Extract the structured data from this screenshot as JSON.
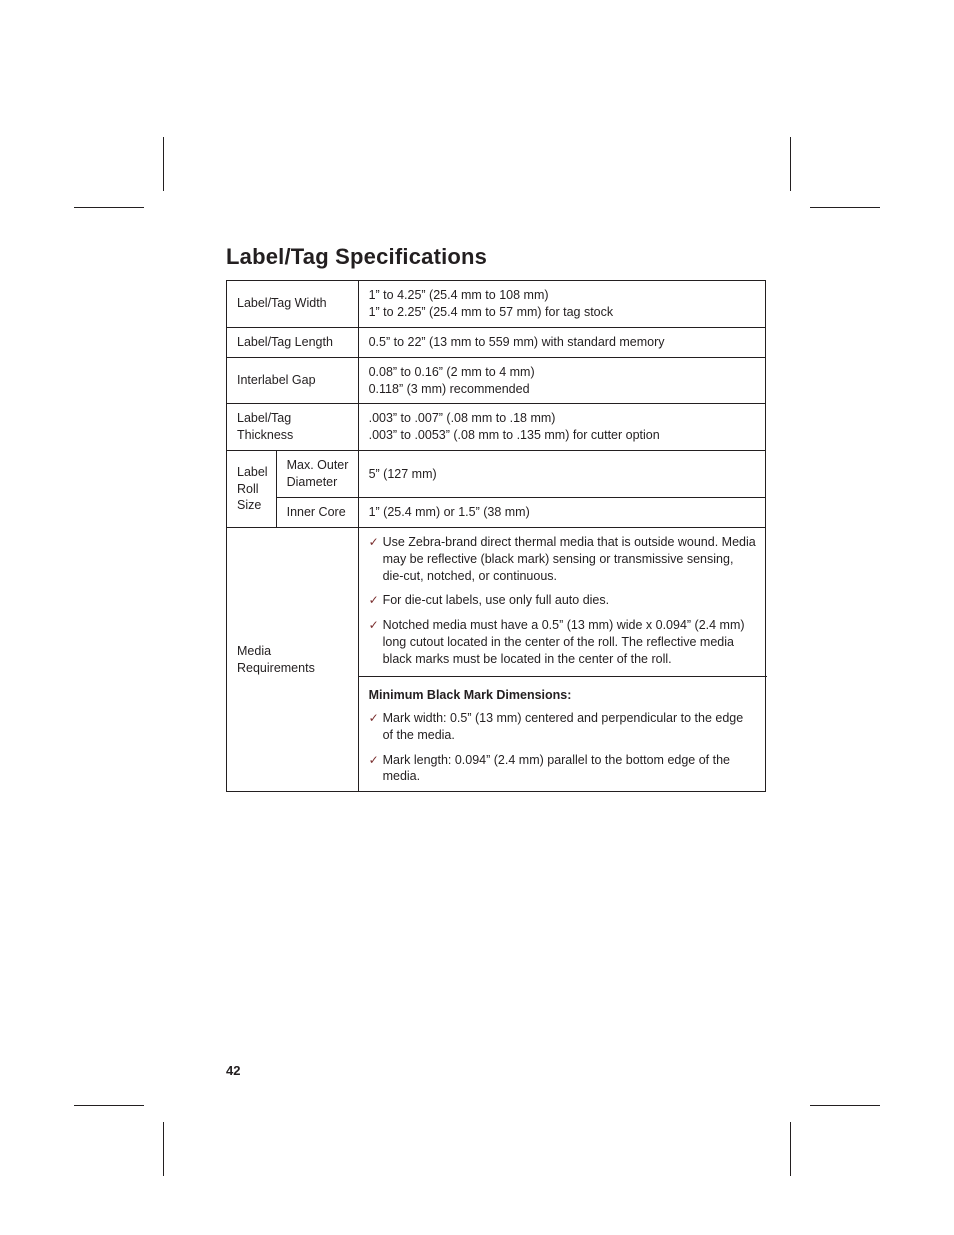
{
  "title": "Label/Tag Specifications",
  "page_number": "42",
  "check_glyph": "✓",
  "check_color": "#7a2e2e",
  "rows": {
    "width": {
      "label": "Label/Tag Width",
      "line1": "1” to 4.25” (25.4 mm to 108 mm)",
      "line2": "1” to 2.25” (25.4 mm to 57 mm) for tag stock"
    },
    "length": {
      "label": "Label/Tag Length",
      "value": "0.5” to 22” (13 mm to 559 mm) with standard memory"
    },
    "gap": {
      "label": "Interlabel Gap",
      "line1": "0.08” to 0.16” (2 mm to 4 mm)",
      "line2": "0.118” (3 mm) recommended"
    },
    "thickness": {
      "label": "Label/Tag Thickness",
      "line1": ".003” to .007” (.08 mm to .18 mm)",
      "line2": ".003” to .0053” (.08 mm to .135 mm) for cutter option"
    },
    "roll": {
      "group_label_l1": "Label",
      "group_label_l2": "Roll",
      "group_label_l3": "Size",
      "outer_label_l1": "Max. Outer",
      "outer_label_l2": "Diameter",
      "outer_value": "5” (127 mm)",
      "inner_label": "Inner Core",
      "inner_value": "1” (25.4 mm) or 1.5” (38 mm)"
    },
    "media": {
      "label_l1": "Media",
      "label_l2": "Requirements",
      "items_top": [
        "Use Zebra-brand direct thermal media that is outside wound.  Media may be reflective (black mark) sensing or transmissive sensing, die-cut, notched, or continuous.",
        "For die-cut labels, use only full auto dies.",
        "Notched media must have a 0.5” (13 mm) wide x 0.094” (2.4 mm) long cutout located in the center of the roll.  The reflective media black marks must be located in the center of the roll."
      ],
      "sub_heading": "Minimum Black Mark Dimensions:",
      "items_bottom": [
        "Mark width:  0.5” (13 mm) centered and perpendicular to the edge of the media.",
        "Mark length:  0.094” (2.4 mm) parallel to the bottom edge of the media."
      ]
    }
  }
}
